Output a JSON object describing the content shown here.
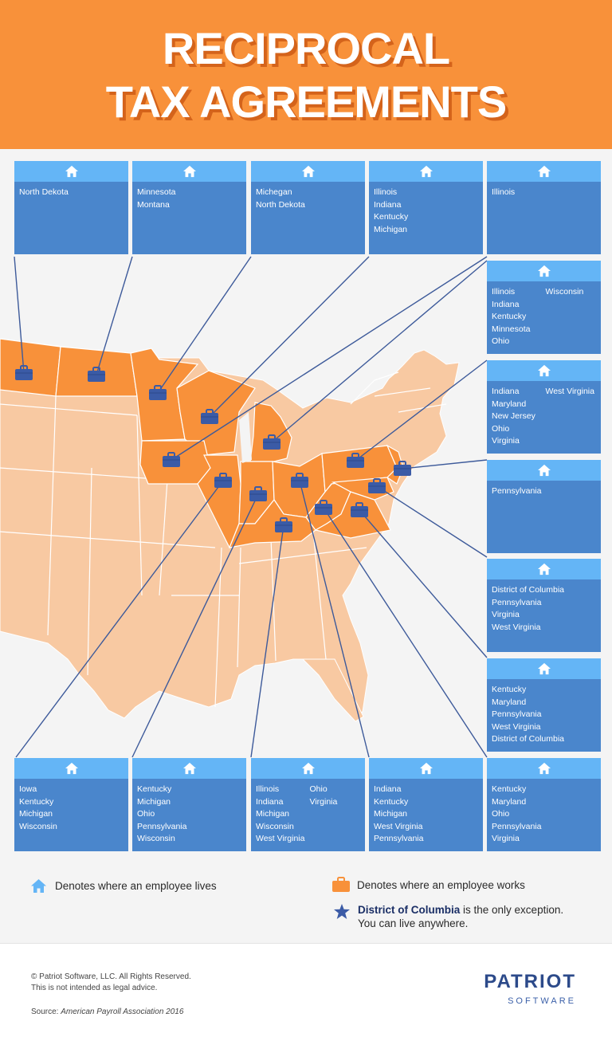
{
  "header": {
    "title_line1": "RECIPROCAL",
    "title_line2": "TAX AGREEMENTS"
  },
  "colors": {
    "header_bg": "#f8913a",
    "work_state": "#f8913a",
    "other_state": "#f8c9a2",
    "box_cap": "#64b5f6",
    "box_body": "#4a86cc",
    "connector": "#3d5a9a",
    "briefcase": "#3b5ba6"
  },
  "boxes": [
    {
      "id": "top1",
      "col1": [
        "North Dekota"
      ],
      "col2": []
    },
    {
      "id": "top2",
      "col1": [
        "Minnesota",
        "Montana"
      ],
      "col2": []
    },
    {
      "id": "top3",
      "col1": [
        "Michegan",
        "North Dekota"
      ],
      "col2": []
    },
    {
      "id": "top4",
      "col1": [
        "Illinois",
        "Indiana",
        "Kentucky",
        "Michigan"
      ],
      "col2": []
    },
    {
      "id": "top5",
      "col1": [
        "Illinois"
      ],
      "col2": []
    },
    {
      "id": "right1",
      "col1": [
        "Illinois",
        "Indiana",
        "Kentucky",
        "Minnesota",
        "Ohio"
      ],
      "col2": [
        "Wisconsin"
      ]
    },
    {
      "id": "right2",
      "col1": [
        "Indiana",
        "Maryland",
        "New Jersey",
        "Ohio",
        "Virginia"
      ],
      "col2": [
        "West Virginia"
      ]
    },
    {
      "id": "right3",
      "col1": [
        "Pennsylvania"
      ],
      "col2": []
    },
    {
      "id": "right4",
      "col1": [
        "District of Columbia",
        "Pennsylvania",
        "Virginia",
        "West Virginia"
      ],
      "col2": []
    },
    {
      "id": "right5",
      "col1": [
        "Kentucky",
        "Maryland",
        "Pennsylvania",
        "West Virginia",
        "District of Columbia"
      ],
      "col2": []
    },
    {
      "id": "bot1",
      "col1": [
        "Iowa",
        "Kentucky",
        "Michigan",
        "Wisconsin"
      ],
      "col2": []
    },
    {
      "id": "bot2",
      "col1": [
        "Kentucky",
        "Michigan",
        "Ohio",
        "Pennsylvania",
        "Wisconsin"
      ],
      "col2": []
    },
    {
      "id": "bot3",
      "col1": [
        "Illinois",
        "Indiana",
        "Michigan",
        "Wisconsin",
        "West Virginia"
      ],
      "col2": [
        "Ohio",
        "Virginia"
      ]
    },
    {
      "id": "bot4",
      "col1": [
        "Indiana",
        "Kentucky",
        "Michigan",
        "West Virginia",
        "Pennsylvania"
      ],
      "col2": []
    },
    {
      "id": "bot5",
      "col1": [
        "Kentucky",
        "Maryland",
        "Ohio",
        "Pennsylvania",
        "Virginia"
      ],
      "col2": []
    }
  ],
  "legend": {
    "lives": "Denotes where an employee lives",
    "works": "Denotes where an employee works",
    "exception_bold": "District of Columbia",
    "exception_rest": " is the only exception.",
    "exception_line2": "You can live anywhere."
  },
  "footer": {
    "copyright": "© Patriot Software, LLC. All Rights Reserved.",
    "disclaimer": "This is not intended as legal advice.",
    "source_label": "Source: ",
    "source_name": "American Payroll Association 2016",
    "logo_brand": "PATRIOT",
    "logo_sub": "SOFTWARE"
  }
}
